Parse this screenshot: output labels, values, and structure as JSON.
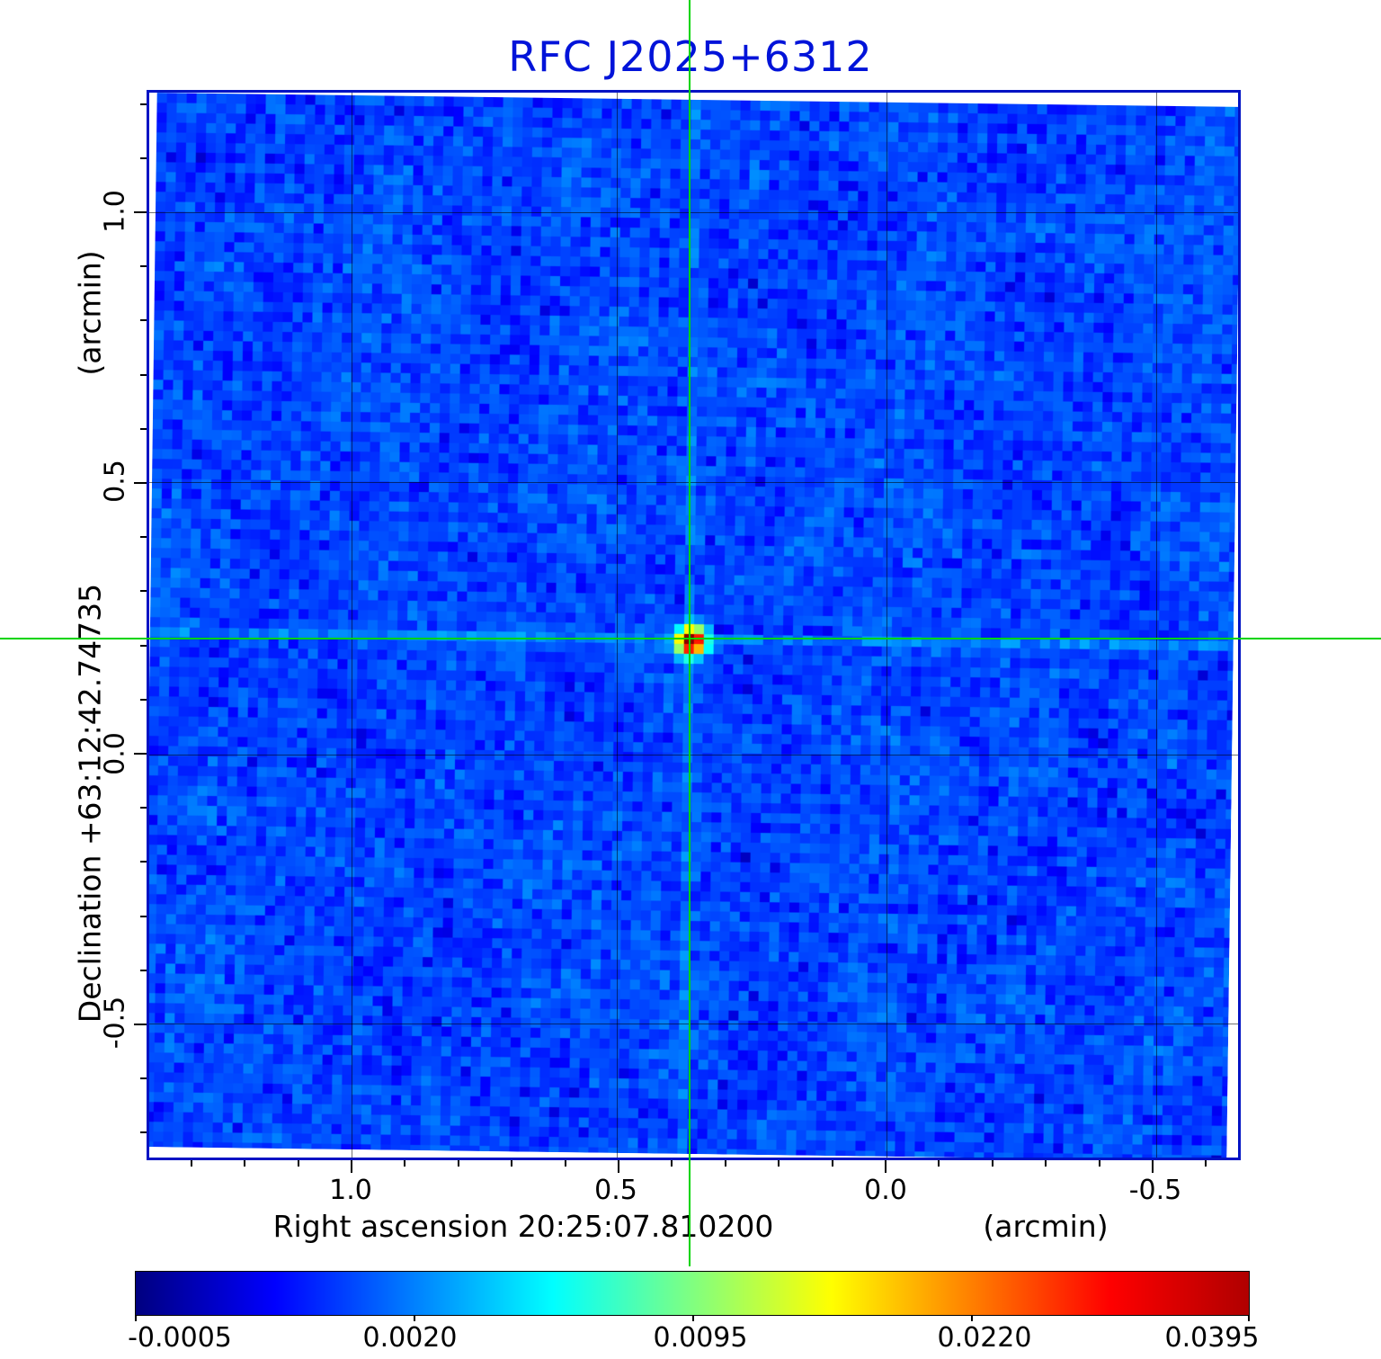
{
  "title": "RFC J2025+6312",
  "axes": {
    "y_unit": "(arcmin)",
    "y_label": "Declination  +63:12:42.74735",
    "x_label": "Right ascension  20:25:07.810200",
    "x_unit": "(arcmin)",
    "y_ticks": [
      "1.0",
      "0.5",
      "0.0",
      "-0.5"
    ],
    "x_ticks": [
      "1.0",
      "0.5",
      "0.0",
      "-0.5"
    ]
  },
  "colorbar": {
    "ticks": [
      "-0.0005",
      "0.0020",
      "0.0095",
      "0.0220",
      "0.0395"
    ]
  },
  "colors": {
    "title": "#0013d9",
    "frame": "#0013c4",
    "crosshair": "#00d400"
  },
  "chart_data": {
    "type": "heatmap",
    "title": "RFC J2025+6312",
    "xlabel": "Right ascension 20:25:07.810200 (arcmin)",
    "ylabel": "Declination +63:12:42.74735 (arcmin)",
    "x_range_arcmin": [
      1.39,
      -0.66
    ],
    "y_range_arcmin": [
      -0.75,
      1.23
    ],
    "x_tick_values": [
      1.0,
      0.5,
      0.0,
      -0.5
    ],
    "y_tick_values": [
      1.0,
      0.5,
      0.0,
      -0.5
    ],
    "colormap": "jet",
    "color_scale_ticks": [
      -0.0005,
      0.002,
      0.0095,
      0.022,
      0.0395
    ],
    "color_scale_spacing": "quadratic",
    "background_mean_value": 0.001,
    "background_noise_rms": 0.001,
    "source": {
      "x_arcmin": 0.36,
      "y_arcmin": 0.21,
      "peak_value": 0.0395,
      "marked_by": "green crosshair"
    },
    "grid": true,
    "legend_position": "none"
  }
}
